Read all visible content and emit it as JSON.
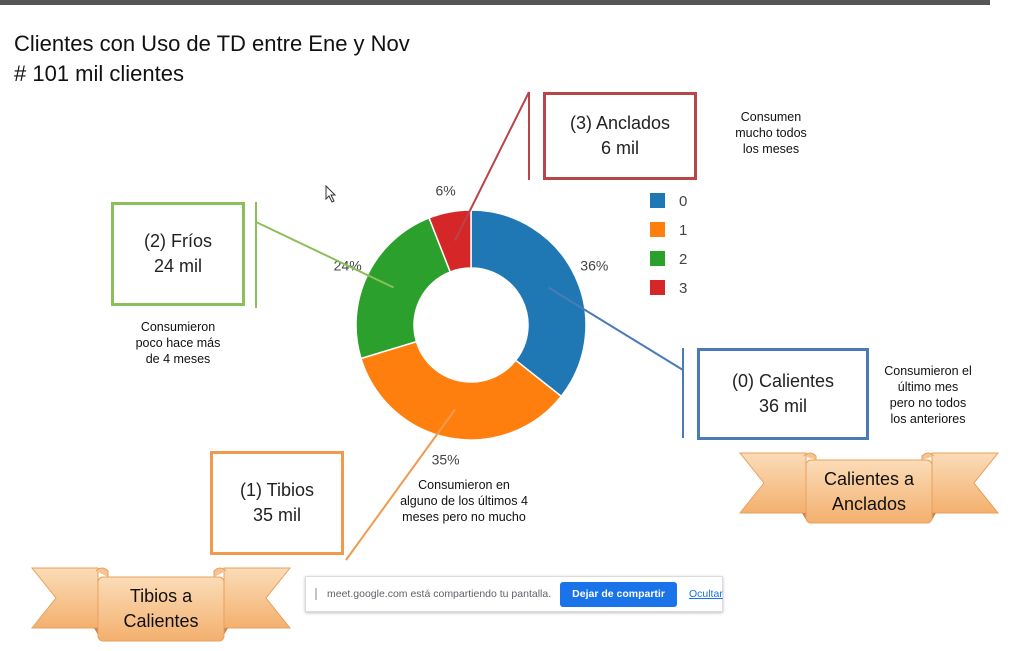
{
  "title_line1": "Clientes con Uso de TD entre Ene y Nov",
  "title_line2": "# 101 mil clientes",
  "chart_data": {
    "type": "donut",
    "categories": [
      "0",
      "1",
      "2",
      "3"
    ],
    "values": [
      36,
      35,
      24,
      6
    ],
    "labels": [
      "36%",
      "35%",
      "24%",
      "6%"
    ],
    "colors": [
      "#1f77b4",
      "#ff7f0e",
      "#2ca02c",
      "#d62728"
    ],
    "legend_position": "right"
  },
  "segments": {
    "calientes": {
      "title": "(0) Calientes",
      "value": "36 mil",
      "note": [
        "Consumieron el",
        "último mes",
        "pero no todos",
        "los anteriores"
      ],
      "color": "#4a7ab7"
    },
    "tibios": {
      "title": "(1) Tibios",
      "value": "35 mil",
      "note": [
        "Consumieron en",
        "alguno de los últimos 4",
        "meses pero no mucho"
      ],
      "color": "#f09a4e"
    },
    "frios": {
      "title": "(2) Fríos",
      "value": "24 mil",
      "note": [
        "Consumieron",
        "poco hace más",
        "de 4 meses"
      ],
      "color": "#8bbf5a"
    },
    "anclados": {
      "title": "(3) Anclados",
      "value": "6 mil",
      "note": [
        "Consumen",
        "mucho todos",
        "los meses"
      ],
      "color": "#b9444a"
    }
  },
  "ribbons": {
    "calientes_anclados": [
      "Calientes a",
      "Anclados"
    ],
    "tibios_calientes": [
      "Tibios a",
      "Calientes"
    ]
  },
  "share_bar": {
    "message": "meet.google.com está compartiendo tu pantalla.",
    "stop_button": "Dejar de compartir",
    "hide_link": "Ocultar"
  }
}
